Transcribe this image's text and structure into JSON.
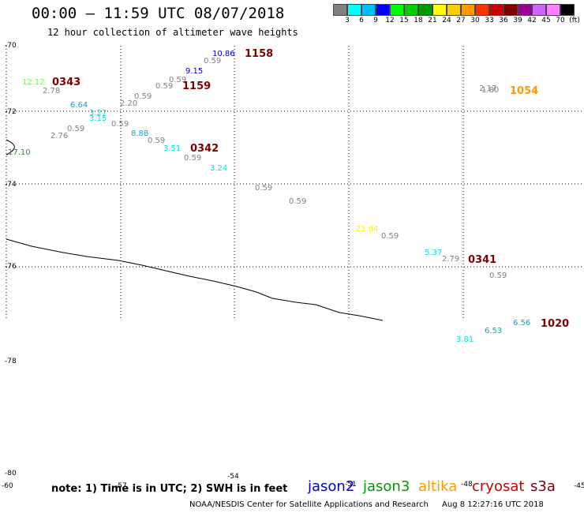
{
  "title": "00:00 – 11:59 UTC 08/07/2018",
  "subtitle": "12 hour collection of altimeter wave heights",
  "colorbar": {
    "unit": "(ft)",
    "swatches": [
      "#808080",
      "#00ffff",
      "#00bfff",
      "#0000ff",
      "#00ff00",
      "#00cc00",
      "#009900",
      "#ffff00",
      "#ffcc00",
      "#ff9900",
      "#ff3300",
      "#cc0000",
      "#800000",
      "#990099",
      "#cc66ff",
      "#ff80ff",
      "#000000"
    ],
    "labels": [
      "3",
      "6",
      "9",
      "12",
      "15",
      "18",
      "21",
      "24",
      "27",
      "30",
      "33",
      "36",
      "39",
      "42",
      "45",
      "70"
    ]
  },
  "lat_labels": [
    "-70",
    "-72",
    "-74",
    "-76",
    "-78",
    "-80"
  ],
  "lon_labels": [
    "-60",
    "-57",
    "-54",
    "-51",
    "-48",
    "-45"
  ],
  "observations": [
    {
      "text": "12.12",
      "color": "#66ff44"
    },
    {
      "text": "2.78",
      "color": "#808080"
    },
    {
      "text": "6.64",
      "color": "#00aacc"
    },
    {
      "text": "3.27",
      "color": "#00e0e0"
    },
    {
      "text": "3.15",
      "color": "#00e0e0"
    },
    {
      "text": "0.59",
      "color": "#808080"
    },
    {
      "text": "2.76",
      "color": "#808080"
    },
    {
      "text": "17.10",
      "color": "#00aa00"
    },
    {
      "text": "0.59",
      "color": "#808080"
    },
    {
      "text": "2.20",
      "color": "#808080"
    },
    {
      "text": "0.59",
      "color": "#808080"
    },
    {
      "text": "0.59",
      "color": "#808080"
    },
    {
      "text": "0.59",
      "color": "#808080"
    },
    {
      "text": "9.15",
      "color": "#0000cc"
    },
    {
      "text": "0.59",
      "color": "#808080"
    },
    {
      "text": "10.86",
      "color": "#0000cc"
    },
    {
      "text": "8.88",
      "color": "#00aacc"
    },
    {
      "text": "0.59",
      "color": "#808080"
    },
    {
      "text": "3.51",
      "color": "#00e0e0"
    },
    {
      "text": "0.59",
      "color": "#808080"
    },
    {
      "text": "3.24",
      "color": "#00e0e0"
    },
    {
      "text": "0.59",
      "color": "#808080"
    },
    {
      "text": "0.59",
      "color": "#808080"
    },
    {
      "text": "21.84",
      "color": "#ffee00"
    },
    {
      "text": "0.59",
      "color": "#808080"
    },
    {
      "text": "5.37",
      "color": "#00e0e0"
    },
    {
      "text": "2.79",
      "color": "#808080"
    },
    {
      "text": "0.59",
      "color": "#808080"
    },
    {
      "text": "2.17",
      "color": "#808080"
    },
    {
      "text": "1.80",
      "color": "#808080"
    },
    {
      "text": "3.81",
      "color": "#00e0e0"
    },
    {
      "text": "6.53",
      "color": "#00aacc"
    },
    {
      "text": "6.56",
      "color": "#00aacc"
    }
  ],
  "pass_times": [
    {
      "text": "0343",
      "color": "#800000"
    },
    {
      "text": "1158",
      "color": "#800000"
    },
    {
      "text": "1159",
      "color": "#800000"
    },
    {
      "text": "0342",
      "color": "#800000"
    },
    {
      "text": "1054",
      "color": "#ff9900"
    },
    {
      "text": "0341",
      "color": "#800000"
    },
    {
      "text": "1020",
      "color": "#800000"
    }
  ],
  "note": "note: 1) Time is in UTC; 2) SWH is in feet",
  "satellites": [
    {
      "name": "jason2",
      "color": "#0000cc"
    },
    {
      "name": "jason3",
      "color": "#009900"
    },
    {
      "name": "altika",
      "color": "#ff9900"
    },
    {
      "name": "cryosat",
      "color": "#cc0000"
    },
    {
      "name": "s3a",
      "color": "#800000"
    }
  ],
  "credit": "NOAA/NESDIS Center for Satellite Applications and Research",
  "generated": "Aug  8 12:27:16 UTC 2018"
}
